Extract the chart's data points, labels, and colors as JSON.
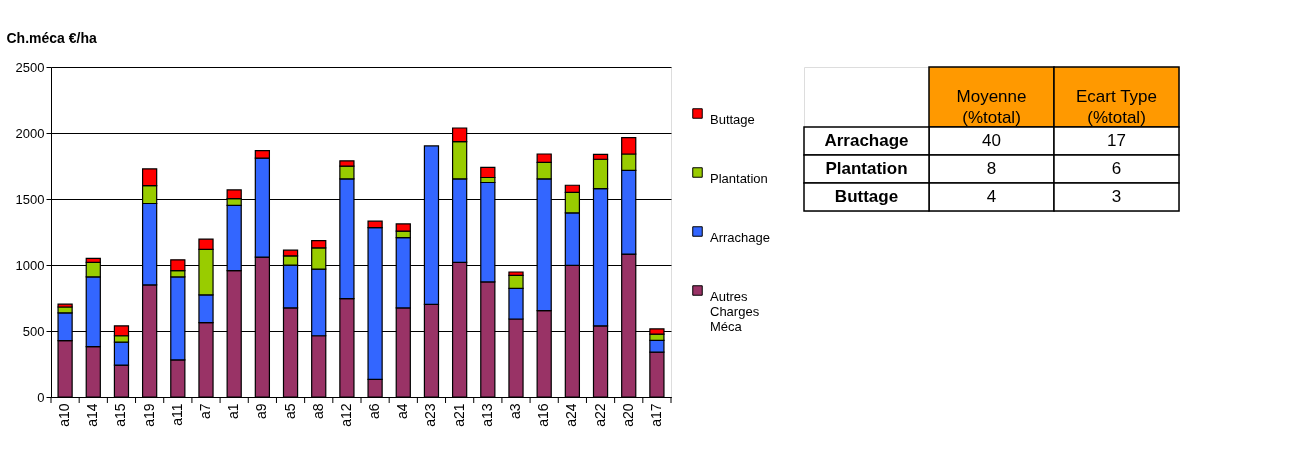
{
  "chart_data": [
    {
      "type": "bar",
      "stacked": true,
      "ylabel": "Ch.méca €/ha",
      "categories": [
        "a10",
        "a14",
        "a15",
        "a19",
        "a11",
        "a7",
        "a1",
        "a9",
        "a5",
        "a8",
        "a12",
        "a6",
        "a4",
        "a23",
        "a21",
        "a13",
        "a3",
        "a16",
        "a24",
        "a22",
        "a20",
        "a17"
      ],
      "series": [
        {
          "name": "Autres Charges Méca",
          "color": "#993366",
          "values": [
            427,
            382,
            242,
            849,
            281,
            563,
            957,
            1060,
            675,
            464,
            746,
            134,
            675,
            701,
            1020,
            872,
            591,
            654,
            997,
            539,
            1083,
            340
          ]
        },
        {
          "name": "Arrachage",
          "color": "#3366ff",
          "values": [
            211,
            528,
            173,
            617,
            629,
            211,
            495,
            750,
            324,
            505,
            907,
            1149,
            533,
            1201,
            633,
            753,
            232,
            999,
            398,
            1039,
            634,
            89
          ]
        },
        {
          "name": "Plantation",
          "color": "#99cc00",
          "values": [
            44,
            110,
            49,
            136,
            47,
            345,
            51,
            null,
            70,
            161,
            96,
            null,
            49,
            null,
            282,
            38,
            99,
            125,
            155,
            223,
            124,
            47
          ]
        },
        {
          "name": "Buttage",
          "color": "#ff0000",
          "values": [
            21,
            30,
            75,
            126,
            82,
            77,
            66,
            57,
            43,
            54,
            40,
            49,
            54,
            null,
            103,
            77,
            25,
            63,
            54,
            37,
            124,
            40
          ]
        }
      ],
      "ylim": [
        0,
        2500
      ],
      "yticks": [
        0,
        500,
        {
          "value": 1000,
          "label": "1000"
        },
        {
          "value": 1500,
          "label": "1500"
        },
        {
          "value": 2000,
          "label": "2000"
        },
        {
          "value": 2500,
          "label": "2500"
        }
      ],
      "grid": "y",
      "legend": "right"
    },
    {
      "type": "other",
      "data_labels": true,
      "categories": [
        "Arrachage",
        "Plantation",
        "Buttage"
      ],
      "series": [
        {
          "name": "Moyenne (%total)",
          "values": [
            40,
            8,
            4
          ]
        },
        {
          "name": "Ecart Type (%total)",
          "values": [
            17,
            6,
            3
          ]
        }
      ]
    }
  ]
}
